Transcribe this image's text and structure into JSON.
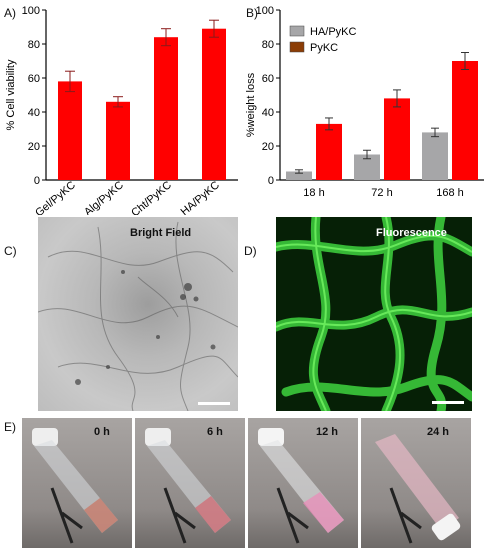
{
  "chart_data": [
    {
      "type": "bar",
      "panel": "A)",
      "categories": [
        "Gel/PyKC",
        "Alg/PyKC",
        "Cht/PyKC",
        "HA/PyKC"
      ],
      "values": [
        58,
        46,
        84,
        89
      ],
      "errors": [
        6,
        3,
        5,
        5
      ],
      "ylabel": "% Cell viability",
      "ylim": [
        0,
        100
      ],
      "yticks": [
        0,
        20,
        40,
        60,
        80,
        100
      ],
      "bar_color": "#ff0000"
    },
    {
      "type": "bar",
      "panel": "B)",
      "categories": [
        "18 h",
        "72 h",
        "168 h"
      ],
      "series": [
        {
          "name": "HA/PyKC",
          "values": [
            5,
            15,
            28
          ],
          "errors": [
            1,
            2.5,
            2.5
          ],
          "color": "#a6a6a8"
        },
        {
          "name": "PyKC",
          "values": [
            33,
            48,
            70
          ],
          "errors": [
            3.5,
            5,
            5
          ],
          "color": "#ff0000"
        }
      ],
      "ylabel": "%weight loss",
      "ylim": [
        0,
        100
      ],
      "yticks": [
        0,
        20,
        40,
        60,
        80,
        100
      ],
      "legend": "top-left"
    }
  ],
  "images": {
    "c": {
      "label": "C)",
      "caption": "Bright Field"
    },
    "d": {
      "label": "D)",
      "caption": "Fluorescence"
    },
    "e": {
      "label": "E)",
      "times": [
        "0 h",
        "6 h",
        "12 h",
        "24 h"
      ]
    }
  }
}
